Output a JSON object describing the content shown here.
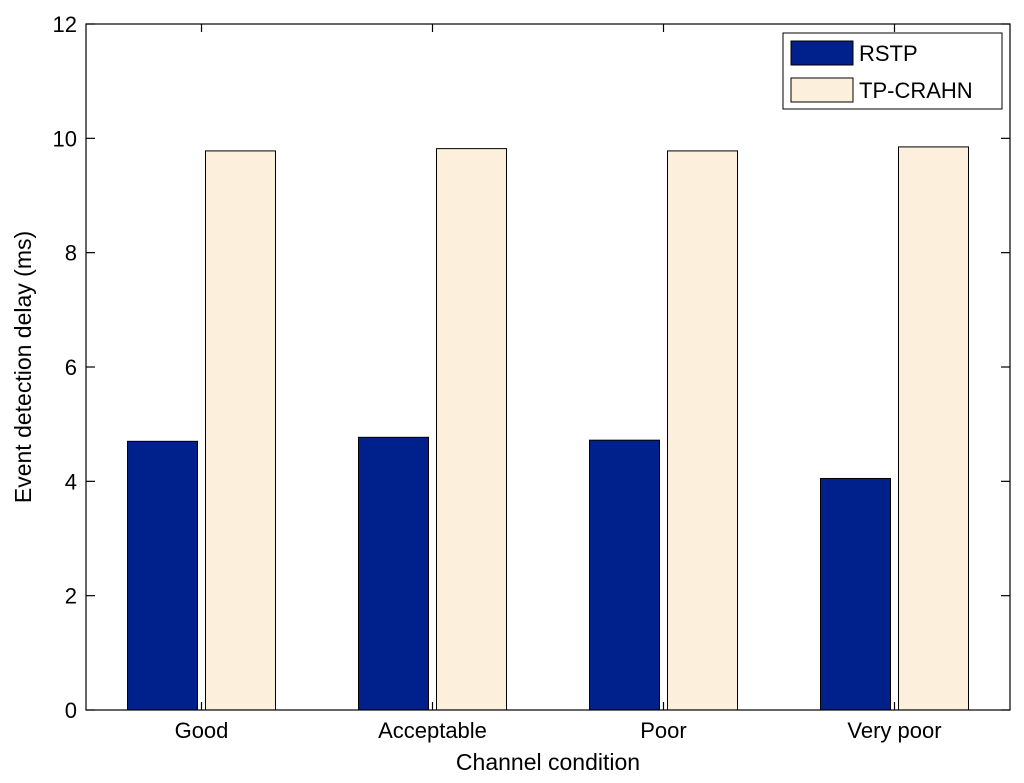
{
  "chart_data": {
    "type": "bar",
    "title": "",
    "xlabel": "Channel condition",
    "ylabel": "Event detection delay (ms)",
    "categories": [
      "Good",
      "Acceptable",
      "Poor",
      "Very poor"
    ],
    "series": [
      {
        "name": "RSTP",
        "color": "#00218C",
        "values": [
          4.7,
          4.77,
          4.72,
          4.05
        ]
      },
      {
        "name": "TP-CRAHN",
        "color": "#FCF0DC",
        "values": [
          9.78,
          9.82,
          9.78,
          9.85
        ]
      }
    ],
    "ylim": [
      0,
      12
    ],
    "yticks": [
      "0",
      "2",
      "4",
      "6",
      "8",
      "10",
      "12"
    ],
    "legend": "top-right",
    "grid": false
  }
}
